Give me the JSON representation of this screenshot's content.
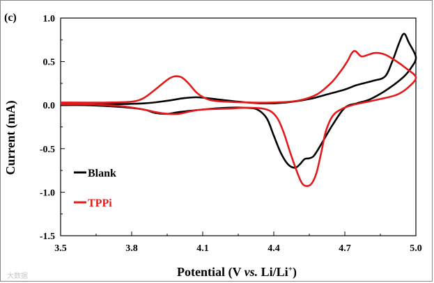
{
  "panel_label": "(c)",
  "watermark": "大数据",
  "chart_data": {
    "type": "line",
    "title": "",
    "xlabel": {
      "pre": "Potential (V ",
      "italic": "vs.",
      "post": " Li/Li",
      "sup": "+",
      "close": ")"
    },
    "ylabel": "Current  (mA)",
    "xlim": [
      3.5,
      5.0
    ],
    "ylim": [
      -1.5,
      1.0
    ],
    "xticks": [
      3.5,
      3.8,
      4.1,
      4.4,
      4.7,
      5.0
    ],
    "xtick_labels": [
      "3.5",
      "3.8",
      "4.1",
      "4.4",
      "4.7",
      "5.0"
    ],
    "yticks": [
      1.0,
      0.5,
      0.0,
      -0.5,
      -1.0,
      -1.5
    ],
    "ytick_labels": [
      "1.0",
      "0.5",
      "0.0",
      "-0.5",
      "-1.0",
      "-1.5"
    ],
    "grid": false,
    "legend_position": "left-bottom",
    "series": [
      {
        "name": "Blank",
        "color": "#000000",
        "points": [
          [
            3.5,
            0.01
          ],
          [
            3.7,
            0.01
          ],
          [
            3.85,
            0.02
          ],
          [
            3.95,
            0.05
          ],
          [
            4.02,
            0.08
          ],
          [
            4.08,
            0.09
          ],
          [
            4.15,
            0.07
          ],
          [
            4.25,
            0.04
          ],
          [
            4.35,
            0.02
          ],
          [
            4.45,
            0.03
          ],
          [
            4.55,
            0.07
          ],
          [
            4.62,
            0.12
          ],
          [
            4.7,
            0.18
          ],
          [
            4.75,
            0.23
          ],
          [
            4.82,
            0.28
          ],
          [
            4.87,
            0.33
          ],
          [
            4.9,
            0.5
          ],
          [
            4.93,
            0.72
          ],
          [
            4.95,
            0.82
          ],
          [
            4.97,
            0.72
          ],
          [
            5.0,
            0.55
          ],
          [
            4.98,
            0.43
          ],
          [
            4.95,
            0.33
          ],
          [
            4.9,
            0.22
          ],
          [
            4.85,
            0.13
          ],
          [
            4.8,
            0.06
          ],
          [
            4.75,
            0.02
          ],
          [
            4.7,
            -0.03
          ],
          [
            4.65,
            -0.22
          ],
          [
            4.6,
            -0.45
          ],
          [
            4.57,
            -0.58
          ],
          [
            4.55,
            -0.61
          ],
          [
            4.53,
            -0.62
          ],
          [
            4.51,
            -0.68
          ],
          [
            4.49,
            -0.72
          ],
          [
            4.46,
            -0.68
          ],
          [
            4.43,
            -0.55
          ],
          [
            4.4,
            -0.35
          ],
          [
            4.37,
            -0.15
          ],
          [
            4.33,
            -0.05
          ],
          [
            4.28,
            -0.03
          ],
          [
            4.2,
            -0.03
          ],
          [
            4.1,
            -0.05
          ],
          [
            4.0,
            -0.08
          ],
          [
            3.95,
            -0.1
          ],
          [
            3.9,
            -0.09
          ],
          [
            3.85,
            -0.05
          ],
          [
            3.75,
            -0.02
          ],
          [
            3.6,
            0.0
          ],
          [
            3.5,
            0.0
          ]
        ]
      },
      {
        "name": "TPPi",
        "color": "#e31a1c",
        "points": [
          [
            3.5,
            0.03
          ],
          [
            3.7,
            0.03
          ],
          [
            3.8,
            0.04
          ],
          [
            3.85,
            0.08
          ],
          [
            3.9,
            0.18
          ],
          [
            3.95,
            0.29
          ],
          [
            3.98,
            0.33
          ],
          [
            4.01,
            0.32
          ],
          [
            4.04,
            0.25
          ],
          [
            4.08,
            0.13
          ],
          [
            4.13,
            0.06
          ],
          [
            4.2,
            0.04
          ],
          [
            4.3,
            0.03
          ],
          [
            4.4,
            0.03
          ],
          [
            4.5,
            0.05
          ],
          [
            4.58,
            0.12
          ],
          [
            4.64,
            0.25
          ],
          [
            4.68,
            0.38
          ],
          [
            4.71,
            0.5
          ],
          [
            4.73,
            0.6
          ],
          [
            4.745,
            0.62
          ],
          [
            4.77,
            0.56
          ],
          [
            4.8,
            0.58
          ],
          [
            4.83,
            0.6
          ],
          [
            4.87,
            0.58
          ],
          [
            4.92,
            0.5
          ],
          [
            4.96,
            0.42
          ],
          [
            5.0,
            0.32
          ],
          [
            4.97,
            0.21
          ],
          [
            4.92,
            0.12
          ],
          [
            4.85,
            0.07
          ],
          [
            4.78,
            0.03
          ],
          [
            4.73,
            0.0
          ],
          [
            4.69,
            -0.04
          ],
          [
            4.65,
            -0.12
          ],
          [
            4.62,
            -0.3
          ],
          [
            4.6,
            -0.55
          ],
          [
            4.58,
            -0.78
          ],
          [
            4.56,
            -0.9
          ],
          [
            4.54,
            -0.93
          ],
          [
            4.52,
            -0.9
          ],
          [
            4.5,
            -0.78
          ],
          [
            4.47,
            -0.55
          ],
          [
            4.44,
            -0.3
          ],
          [
            4.41,
            -0.13
          ],
          [
            4.37,
            -0.05
          ],
          [
            4.3,
            -0.03
          ],
          [
            4.2,
            -0.04
          ],
          [
            4.1,
            -0.05
          ],
          [
            4.05,
            -0.07
          ],
          [
            4.0,
            -0.1
          ],
          [
            3.95,
            -0.1
          ],
          [
            3.9,
            -0.08
          ],
          [
            3.85,
            -0.05
          ],
          [
            3.75,
            -0.01
          ],
          [
            3.6,
            0.01
          ],
          [
            3.5,
            0.01
          ]
        ]
      }
    ]
  }
}
